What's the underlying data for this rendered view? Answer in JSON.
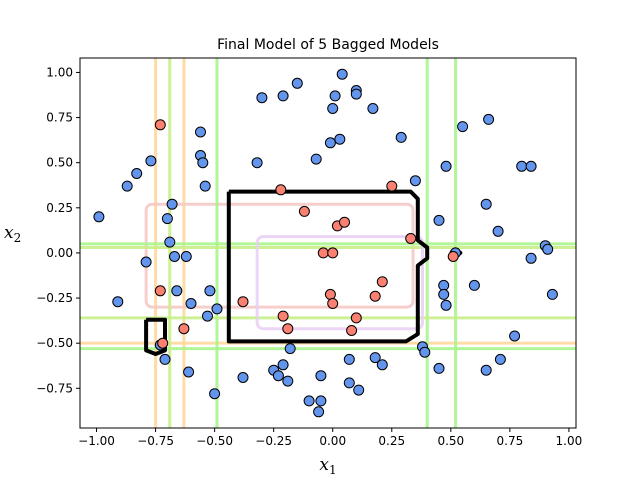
{
  "chart_data": {
    "type": "scatter",
    "title": "Final Model of 5 Bagged Models",
    "xlabel": {
      "main": "x",
      "sub": "1"
    },
    "ylabel": {
      "main": "x",
      "sub": "2"
    },
    "xlim": [
      -1.07,
      1.03
    ],
    "ylim": [
      -0.97,
      1.08
    ],
    "x_ticks": [
      -1.0,
      -0.75,
      -0.5,
      -0.25,
      0.0,
      0.25,
      0.5,
      0.75,
      1.0
    ],
    "x_tick_labels": [
      "−1.00",
      "−0.75",
      "−0.50",
      "−0.25",
      "0.00",
      "0.25",
      "0.50",
      "0.75",
      "1.00"
    ],
    "y_ticks": [
      1.0,
      0.75,
      0.5,
      0.25,
      0.0,
      -0.25,
      -0.5,
      -0.75
    ],
    "y_tick_labels": [
      "1.00",
      "0.75",
      "0.50",
      "0.25",
      "0.00",
      "−0.25",
      "−0.50",
      "−0.75"
    ],
    "grid": false,
    "colors": {
      "class_0": "#6495ed",
      "class_1": "#fa8072",
      "final_boundary": "#000000"
    },
    "series": [
      {
        "class": "0",
        "color": "#6495ed",
        "points": [
          [
            -0.99,
            0.2
          ],
          [
            -0.91,
            -0.27
          ],
          [
            -0.87,
            0.37
          ],
          [
            -0.83,
            0.44
          ],
          [
            -0.79,
            -0.05
          ],
          [
            -0.77,
            0.51
          ],
          [
            -0.73,
            -0.51
          ],
          [
            -0.71,
            -0.59
          ],
          [
            -0.7,
            0.19
          ],
          [
            -0.69,
            0.06
          ],
          [
            -0.68,
            0.27
          ],
          [
            -0.67,
            -0.02
          ],
          [
            -0.66,
            -0.21
          ],
          [
            -0.62,
            -0.02
          ],
          [
            -0.61,
            -0.66
          ],
          [
            -0.6,
            -0.28
          ],
          [
            -0.56,
            0.67
          ],
          [
            -0.56,
            0.54
          ],
          [
            -0.55,
            0.5
          ],
          [
            -0.54,
            0.37
          ],
          [
            -0.53,
            -0.35
          ],
          [
            -0.52,
            -0.21
          ],
          [
            -0.5,
            -0.78
          ],
          [
            -0.49,
            -0.31
          ],
          [
            -0.38,
            -0.69
          ],
          [
            -0.32,
            0.5
          ],
          [
            -0.3,
            0.86
          ],
          [
            -0.25,
            -0.65
          ],
          [
            -0.23,
            -0.68
          ],
          [
            -0.21,
            -0.62
          ],
          [
            -0.21,
            0.87
          ],
          [
            -0.19,
            -0.71
          ],
          [
            -0.18,
            -0.53
          ],
          [
            -0.15,
            0.94
          ],
          [
            -0.1,
            -0.82
          ],
          [
            -0.07,
            0.52
          ],
          [
            -0.06,
            -0.88
          ],
          [
            -0.05,
            -0.68
          ],
          [
            -0.05,
            -0.82
          ],
          [
            -0.01,
            0.61
          ],
          [
            0.0,
            0.8
          ],
          [
            0.01,
            0.87
          ],
          [
            0.03,
            0.63
          ],
          [
            0.04,
            0.99
          ],
          [
            0.07,
            -0.59
          ],
          [
            0.07,
            -0.72
          ],
          [
            0.1,
            0.9
          ],
          [
            0.1,
            0.88
          ],
          [
            0.11,
            -0.76
          ],
          [
            0.17,
            0.8
          ],
          [
            0.18,
            -0.58
          ],
          [
            0.21,
            -0.62
          ],
          [
            0.29,
            0.64
          ],
          [
            0.35,
            0.4
          ],
          [
            0.38,
            -0.52
          ],
          [
            0.39,
            -0.55
          ],
          [
            0.45,
            0.18
          ],
          [
            0.45,
            -0.64
          ],
          [
            0.47,
            -0.18
          ],
          [
            0.47,
            -0.23
          ],
          [
            0.48,
            0.48
          ],
          [
            0.48,
            -0.29
          ],
          [
            0.52,
            0.0
          ],
          [
            0.55,
            0.7
          ],
          [
            0.6,
            -0.18
          ],
          [
            0.65,
            0.27
          ],
          [
            0.66,
            0.74
          ],
          [
            0.65,
            -0.65
          ],
          [
            0.7,
            0.12
          ],
          [
            0.71,
            -0.59
          ],
          [
            0.77,
            -0.46
          ],
          [
            0.8,
            0.48
          ],
          [
            0.84,
            0.48
          ],
          [
            0.84,
            -0.03
          ],
          [
            0.9,
            0.04
          ],
          [
            0.91,
            0.02
          ],
          [
            0.93,
            -0.23
          ]
        ]
      },
      {
        "class": "1",
        "color": "#fa8072",
        "points": [
          [
            -0.73,
            0.71
          ],
          [
            -0.73,
            -0.21
          ],
          [
            -0.72,
            -0.5
          ],
          [
            -0.63,
            -0.42
          ],
          [
            -0.38,
            -0.27
          ],
          [
            -0.22,
            0.35
          ],
          [
            -0.21,
            -0.35
          ],
          [
            -0.19,
            -0.42
          ],
          [
            -0.12,
            0.23
          ],
          [
            -0.04,
            0.0
          ],
          [
            0.0,
            0.0
          ],
          [
            -0.01,
            -0.23
          ],
          [
            0.0,
            -0.28
          ],
          [
            0.02,
            0.15
          ],
          [
            0.05,
            0.17
          ],
          [
            0.08,
            -0.43
          ],
          [
            0.1,
            -0.36
          ],
          [
            0.18,
            -0.24
          ],
          [
            0.21,
            -0.16
          ],
          [
            0.25,
            0.37
          ],
          [
            0.33,
            0.08
          ],
          [
            0.51,
            -0.02
          ]
        ]
      }
    ],
    "model_boundaries": [
      {
        "color": "#ffd89b",
        "vertical_x": [
          -0.75,
          -0.63
        ],
        "horizontal_y": [
          -0.5
        ],
        "note_region": [
          -0.75,
          -0.63,
          0.36,
          1.08
        ]
      },
      {
        "color": "#f5c9c5",
        "box": [
          -0.79,
          0.34,
          -0.3,
          0.27
        ]
      },
      {
        "color": "#a8f58c",
        "vertical_x": [
          -0.49,
          0.4,
          0.52
        ],
        "horizontal_y": [
          -0.53,
          0.05
        ]
      },
      {
        "color": "#c9ee8a",
        "vertical_x": [
          -0.69
        ],
        "horizontal_y": [
          -0.36,
          0.03
        ]
      },
      {
        "color": "#ead0f5",
        "box": [
          -0.32,
          0.38,
          -0.42,
          0.09
        ]
      }
    ],
    "final_boundary": {
      "color": "#000000",
      "regions": [
        [
          [
            -0.44,
            0.34
          ],
          [
            0.33,
            0.34
          ],
          [
            0.36,
            0.3
          ],
          [
            0.36,
            0.07
          ],
          [
            0.4,
            0.03
          ],
          [
            0.4,
            -0.03
          ],
          [
            0.36,
            -0.07
          ],
          [
            0.36,
            -0.45
          ],
          [
            0.31,
            -0.49
          ],
          [
            -0.44,
            -0.49
          ],
          [
            -0.44,
            0.34
          ]
        ],
        [
          [
            -0.79,
            -0.37
          ],
          [
            -0.71,
            -0.37
          ],
          [
            -0.71,
            -0.54
          ],
          [
            -0.75,
            -0.56
          ],
          [
            -0.79,
            -0.54
          ],
          [
            -0.79,
            -0.37
          ]
        ],
        [
          [
            0.5,
            0.0
          ],
          [
            0.52,
            0.02
          ],
          [
            0.54,
            0.0
          ],
          [
            0.52,
            -0.02
          ],
          [
            0.5,
            0.0
          ]
        ]
      ]
    }
  }
}
